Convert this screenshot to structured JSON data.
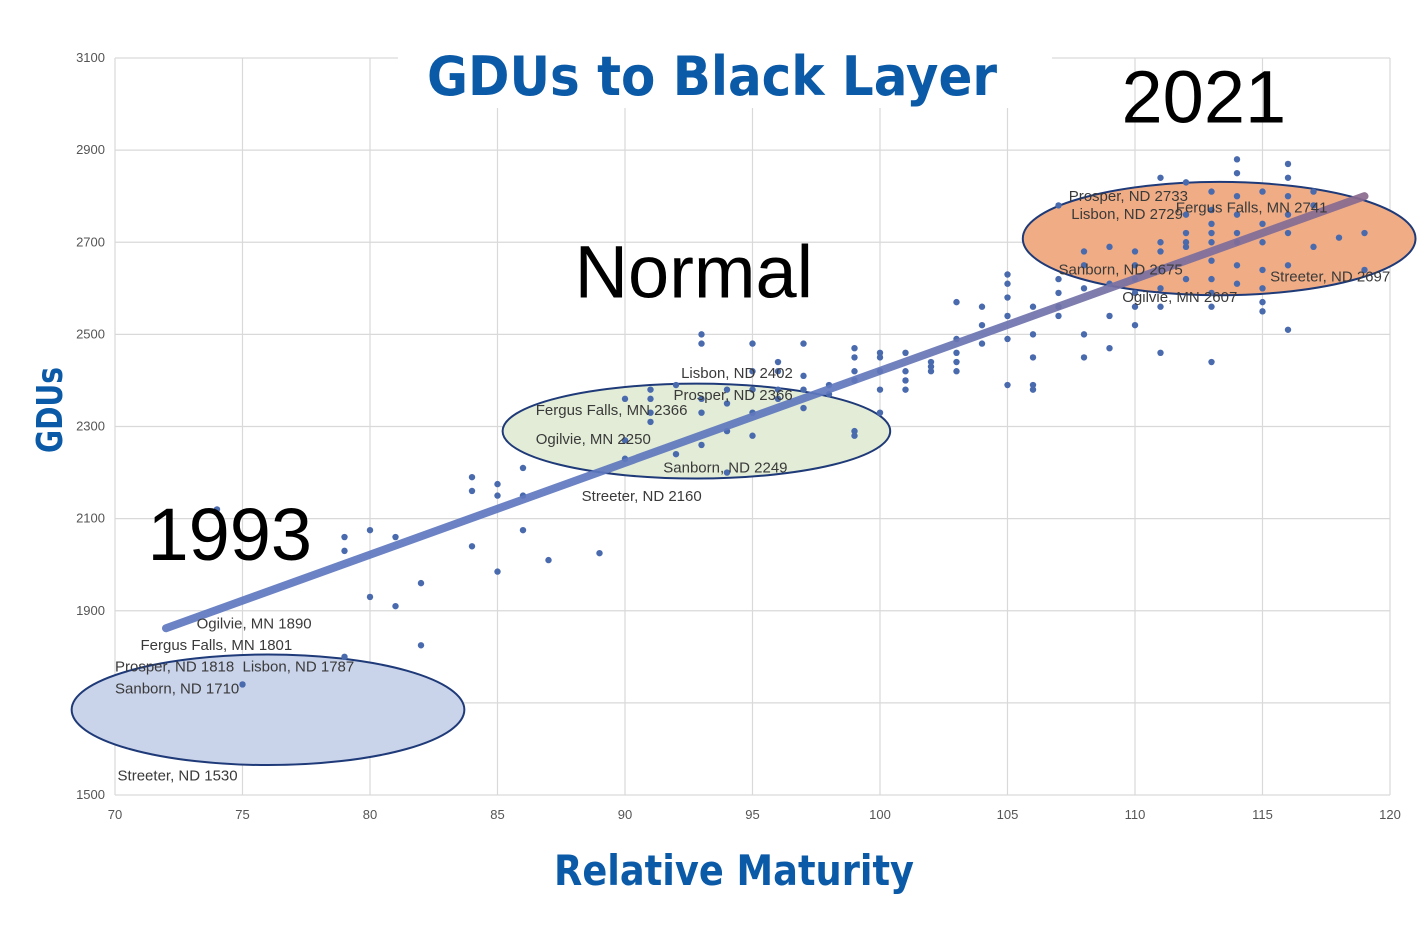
{
  "chart_data": {
    "type": "scatter",
    "title": "GDUs to Black Layer",
    "xlabel": "Relative Maturity",
    "ylabel": "GDUs",
    "xlim": [
      70,
      120
    ],
    "ylim": [
      1500,
      3100
    ],
    "xticks": [
      70,
      75,
      80,
      85,
      90,
      95,
      100,
      105,
      110,
      115,
      120
    ],
    "yticks": [
      1500,
      1700,
      1900,
      2100,
      2300,
      2500,
      2700,
      2900,
      3100
    ],
    "grid": true,
    "trendline": {
      "x": [
        72,
        119
      ],
      "y": [
        1862,
        2800
      ]
    },
    "points": [
      [
        74,
        2120
      ],
      [
        75,
        1740
      ],
      [
        79,
        1800
      ],
      [
        79,
        2060
      ],
      [
        79,
        2030
      ],
      [
        80,
        2075
      ],
      [
        80,
        1930
      ],
      [
        81,
        2060
      ],
      [
        81,
        1910
      ],
      [
        82,
        1960
      ],
      [
        82,
        1825
      ],
      [
        84,
        2190
      ],
      [
        84,
        2160
      ],
      [
        84,
        2040
      ],
      [
        85,
        2175
      ],
      [
        85,
        2150
      ],
      [
        85,
        1985
      ],
      [
        86,
        2210
      ],
      [
        86,
        2150
      ],
      [
        86,
        2075
      ],
      [
        87,
        2010
      ],
      [
        89,
        2025
      ],
      [
        90,
        2360
      ],
      [
        90,
        2270
      ],
      [
        90,
        2230
      ],
      [
        91,
        2380
      ],
      [
        91,
        2360
      ],
      [
        91,
        2330
      ],
      [
        91,
        2310
      ],
      [
        92,
        2390
      ],
      [
        92,
        2240
      ],
      [
        93,
        2500
      ],
      [
        93,
        2480
      ],
      [
        93,
        2360
      ],
      [
        93,
        2330
      ],
      [
        93,
        2260
      ],
      [
        94,
        2380
      ],
      [
        94,
        2350
      ],
      [
        94,
        2290
      ],
      [
        94,
        2200
      ],
      [
        95,
        2480
      ],
      [
        95,
        2420
      ],
      [
        95,
        2380
      ],
      [
        95,
        2330
      ],
      [
        95,
        2280
      ],
      [
        96,
        2440
      ],
      [
        96,
        2420
      ],
      [
        96,
        2380
      ],
      [
        96,
        2360
      ],
      [
        97,
        2480
      ],
      [
        97,
        2410
      ],
      [
        97,
        2380
      ],
      [
        97,
        2340
      ],
      [
        98,
        2390
      ],
      [
        98,
        2370
      ],
      [
        99,
        2470
      ],
      [
        99,
        2450
      ],
      [
        99,
        2420
      ],
      [
        99,
        2400
      ],
      [
        99,
        2290
      ],
      [
        99,
        2280
      ],
      [
        100,
        2460
      ],
      [
        100,
        2450
      ],
      [
        100,
        2420
      ],
      [
        100,
        2380
      ],
      [
        100,
        2330
      ],
      [
        101,
        2460
      ],
      [
        101,
        2420
      ],
      [
        101,
        2400
      ],
      [
        101,
        2380
      ],
      [
        102,
        2440
      ],
      [
        102,
        2430
      ],
      [
        102,
        2420
      ],
      [
        103,
        2570
      ],
      [
        103,
        2490
      ],
      [
        103,
        2460
      ],
      [
        103,
        2440
      ],
      [
        103,
        2420
      ],
      [
        104,
        2560
      ],
      [
        104,
        2520
      ],
      [
        104,
        2480
      ],
      [
        105,
        2630
      ],
      [
        105,
        2610
      ],
      [
        105,
        2580
      ],
      [
        105,
        2540
      ],
      [
        105,
        2490
      ],
      [
        105,
        2390
      ],
      [
        106,
        2560
      ],
      [
        106,
        2500
      ],
      [
        106,
        2450
      ],
      [
        106,
        2390
      ],
      [
        106,
        2380
      ],
      [
        107,
        2620
      ],
      [
        107,
        2590
      ],
      [
        107,
        2560
      ],
      [
        107,
        2540
      ],
      [
        107,
        2780
      ],
      [
        108,
        2680
      ],
      [
        108,
        2650
      ],
      [
        108,
        2600
      ],
      [
        108,
        2500
      ],
      [
        108,
        2450
      ],
      [
        109,
        2690
      ],
      [
        109,
        2610
      ],
      [
        109,
        2540
      ],
      [
        109,
        2470
      ],
      [
        110,
        2680
      ],
      [
        110,
        2650
      ],
      [
        110,
        2620
      ],
      [
        110,
        2590
      ],
      [
        110,
        2560
      ],
      [
        110,
        2520
      ],
      [
        111,
        2840
      ],
      [
        111,
        2700
      ],
      [
        111,
        2680
      ],
      [
        111,
        2640
      ],
      [
        111,
        2600
      ],
      [
        111,
        2560
      ],
      [
        111,
        2460
      ],
      [
        112,
        2830
      ],
      [
        112,
        2760
      ],
      [
        112,
        2720
      ],
      [
        112,
        2700
      ],
      [
        112,
        2690
      ],
      [
        112,
        2620
      ],
      [
        113,
        2810
      ],
      [
        113,
        2770
      ],
      [
        113,
        2740
      ],
      [
        113,
        2720
      ],
      [
        113,
        2700
      ],
      [
        113,
        2660
      ],
      [
        113,
        2620
      ],
      [
        113,
        2590
      ],
      [
        113,
        2560
      ],
      [
        113,
        2440
      ],
      [
        114,
        2880
      ],
      [
        114,
        2850
      ],
      [
        114,
        2800
      ],
      [
        114,
        2760
      ],
      [
        114,
        2720
      ],
      [
        114,
        2700
      ],
      [
        114,
        2650
      ],
      [
        114,
        2610
      ],
      [
        115,
        2810
      ],
      [
        115,
        2740
      ],
      [
        115,
        2700
      ],
      [
        115,
        2640
      ],
      [
        115,
        2600
      ],
      [
        115,
        2570
      ],
      [
        115,
        2550
      ],
      [
        116,
        2870
      ],
      [
        116,
        2840
      ],
      [
        116,
        2800
      ],
      [
        116,
        2760
      ],
      [
        116,
        2720
      ],
      [
        116,
        2650
      ],
      [
        116,
        2510
      ],
      [
        117,
        2810
      ],
      [
        117,
        2780
      ],
      [
        117,
        2690
      ],
      [
        118,
        2710
      ],
      [
        119,
        2720
      ],
      [
        119,
        2640
      ]
    ],
    "regions": [
      {
        "label": "1993",
        "fill": "#c9d3ea",
        "cx": 76,
        "cy": 1685,
        "rx": 7.7,
        "ry": 120,
        "labels": [
          {
            "text": "Ogilvie, MN 1890",
            "x": 73.2,
            "y": 1862
          },
          {
            "text": "Fergus Falls, MN 1801",
            "x": 71.0,
            "y": 1815
          },
          {
            "text": "Prosper, ND 1818",
            "x": 70.0,
            "y": 1768
          },
          {
            "text": "Lisbon, ND 1787",
            "x": 75.0,
            "y": 1768
          },
          {
            "text": "Sanborn, ND 1710",
            "x": 70.0,
            "y": 1720
          },
          {
            "text": "Streeter, ND 1530",
            "x": 70.1,
            "y": 1532
          }
        ]
      },
      {
        "label": "Normal",
        "fill": "#e2ecd6",
        "cx": 92.8,
        "cy": 2290,
        "rx": 7.6,
        "ry": 103,
        "labels": [
          {
            "text": "Lisbon, ND 2402",
            "x": 92.2,
            "y": 2405
          },
          {
            "text": "Prosper, ND 2366",
            "x": 91.9,
            "y": 2358
          },
          {
            "text": "Fergus Falls, MN 2366",
            "x": 86.5,
            "y": 2325
          },
          {
            "text": "Ogilvie, MN 2250",
            "x": 86.5,
            "y": 2262
          },
          {
            "text": "Sanborn, ND 2249",
            "x": 91.5,
            "y": 2200
          },
          {
            "text": "Streeter, ND 2160",
            "x": 88.3,
            "y": 2138
          }
        ]
      },
      {
        "label": "2021",
        "fill": "#f0ad85",
        "cx": 113.3,
        "cy": 2708,
        "rx": 7.7,
        "ry": 123,
        "labels": [
          {
            "text": "Prosper, ND 2733",
            "x": 107.4,
            "y": 2790
          },
          {
            "text": "Fergus Falls, MN 2741",
            "x": 111.6,
            "y": 2765
          },
          {
            "text": "Lisbon, ND 2729",
            "x": 107.5,
            "y": 2750
          },
          {
            "text": "Sanborn, ND 2675",
            "x": 107.0,
            "y": 2630
          },
          {
            "text": "Streeter, ND 2697",
            "x": 115.3,
            "y": 2615
          },
          {
            "text": "Ogilvie, MN 2607",
            "x": 109.5,
            "y": 2570
          }
        ]
      }
    ],
    "annotations": [
      {
        "text": "1993",
        "x": 74.5,
        "y": 2010
      },
      {
        "text": "Normal",
        "x": 92.7,
        "y": 2580
      },
      {
        "text": "2021",
        "x": 112.7,
        "y": 2960
      }
    ],
    "colors": {
      "points": "#4a6aae",
      "trendline": "#6179bd",
      "title": "#0b5aa7",
      "grid": "#d9d9d9",
      "ellipse_stroke": "#1f3a78"
    }
  }
}
